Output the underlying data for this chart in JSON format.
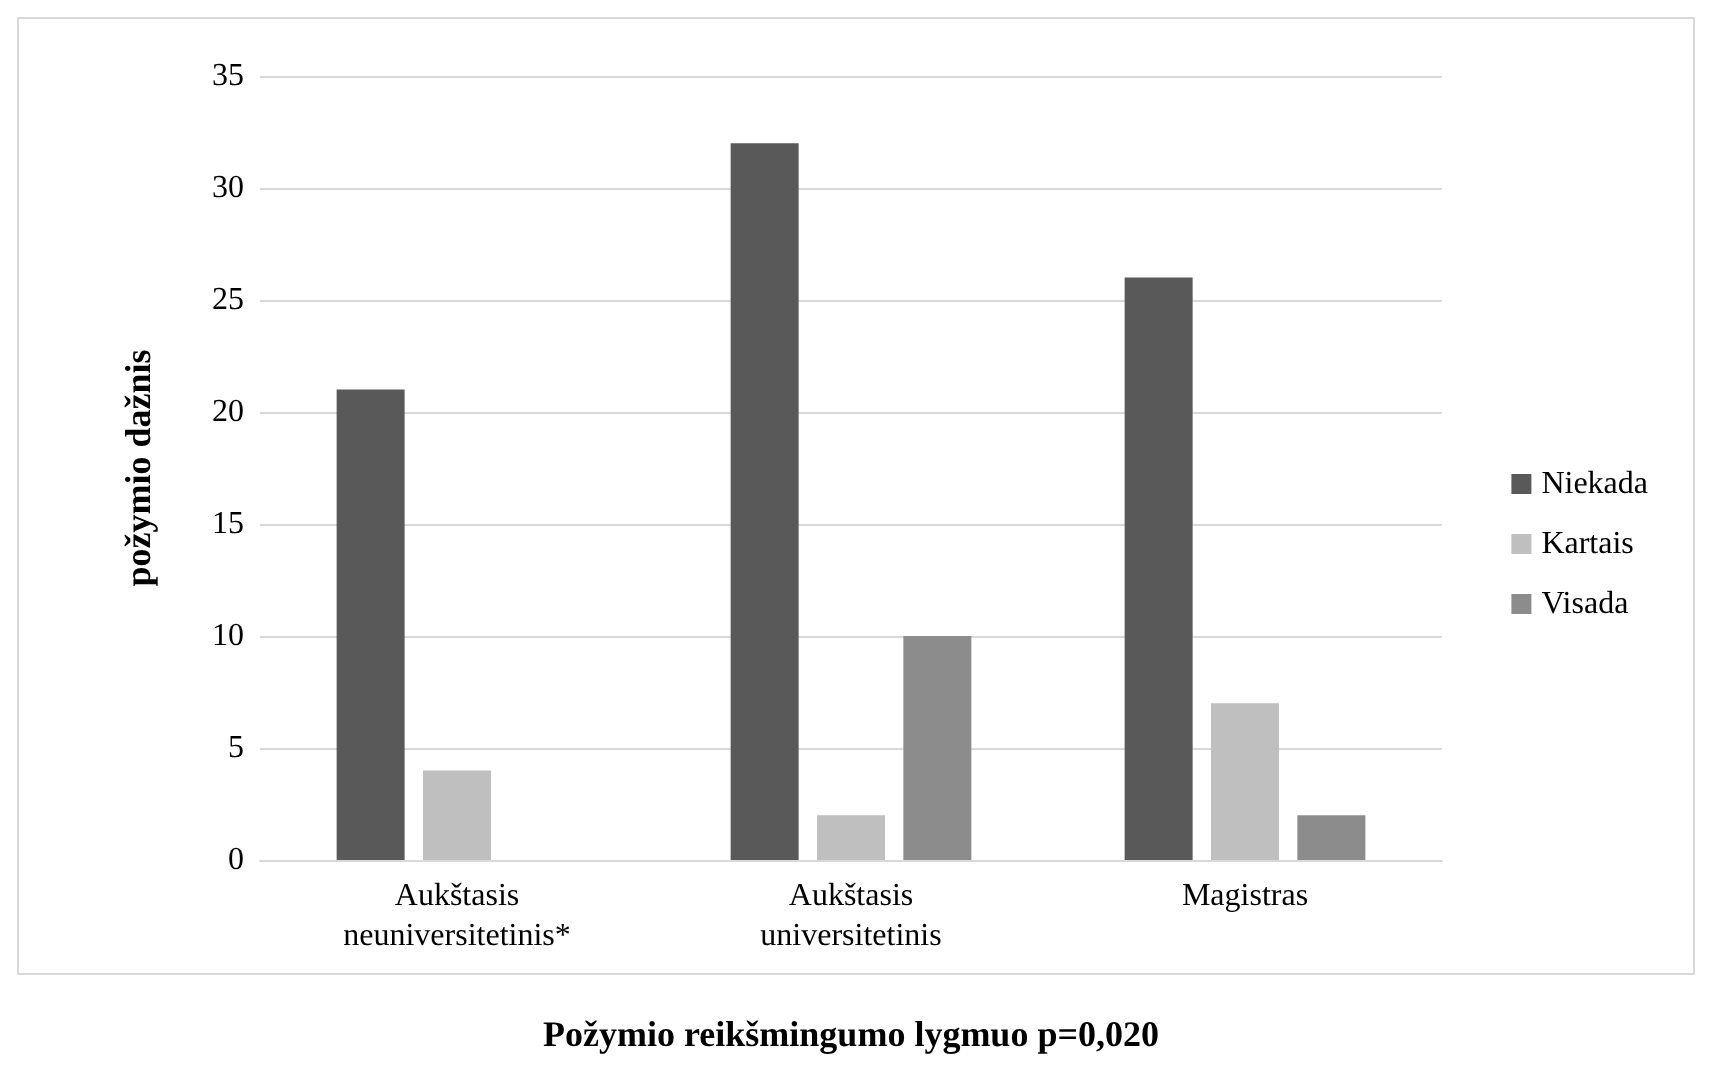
{
  "chart_data": {
    "type": "bar",
    "categories": [
      "Aukštasis\nneuniversitetinis*",
      "Aukštasis\nuniversitetinis",
      "Magistras"
    ],
    "series": [
      {
        "name": "Niekada",
        "color": "#595959",
        "values": [
          21,
          32,
          26
        ]
      },
      {
        "name": "Kartais",
        "color": "#bfbfbf",
        "values": [
          4,
          2,
          7
        ]
      },
      {
        "name": "Visada",
        "color": "#8c8c8c",
        "values": [
          0,
          10,
          2
        ]
      }
    ],
    "ylabel": "požymio dažnis",
    "xlabel": "Požymio reikšmingumo lygmuo p=0,020",
    "ylim": [
      0,
      35
    ],
    "yticks": [
      0,
      5,
      10,
      15,
      20,
      25,
      30,
      35
    ],
    "grid": "y",
    "legend": "right"
  }
}
